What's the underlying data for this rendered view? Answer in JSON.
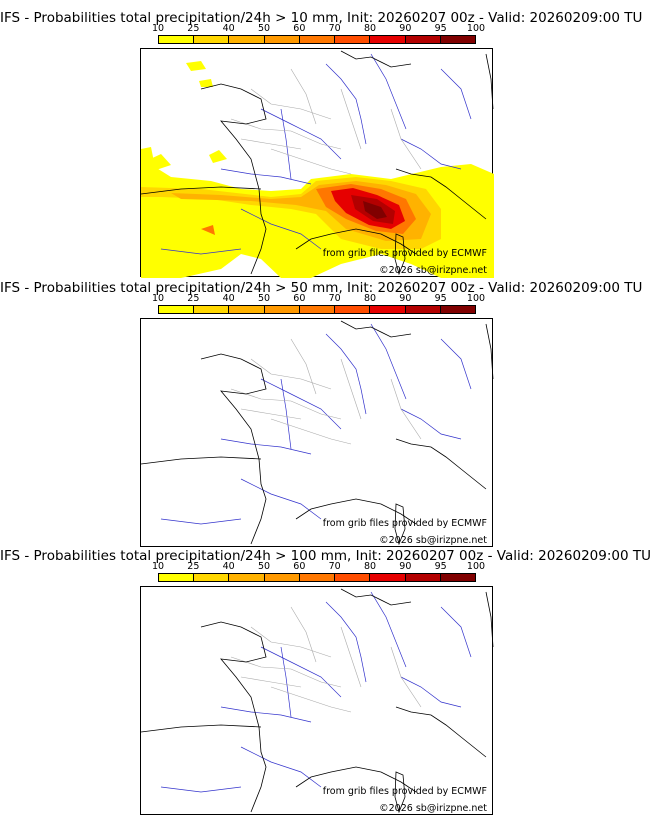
{
  "scale": {
    "labels": [
      "10",
      "25",
      "40",
      "50",
      "60",
      "70",
      "80",
      "90",
      "95",
      "100"
    ],
    "colors": [
      "#ffff00",
      "#ffd700",
      "#ffb200",
      "#ff9900",
      "#ff7700",
      "#ff4d00",
      "#e60000",
      "#b30000",
      "#800000"
    ]
  },
  "panels": [
    {
      "title": "IFS - Probabilities total precipitation/24h > 10 mm, Init: 20260207 00z - Valid: 20260209:00 TU",
      "credit1": "from grib files provided by ECMWF",
      "credit2": "©2026 sb@irizpne.net"
    },
    {
      "title": "IFS - Probabilities total precipitation/24h > 50 mm, Init: 20260207 00z - Valid: 20260209:00 TU",
      "credit1": "from grib files provided by ECMWF",
      "credit2": "©2026 sb@irizpne.net"
    },
    {
      "title": "IFS - Probabilities total precipitation/24h > 100 mm, Init: 20260207 00z - Valid: 20260209:00 TU",
      "credit1": "from grib files provided by ECMWF",
      "credit2": "©2026 sb@irizpne.net"
    }
  ],
  "map_colors": {
    "coast": "#000000",
    "rivers": "#3333cc",
    "borders": "#aaaaaa"
  }
}
